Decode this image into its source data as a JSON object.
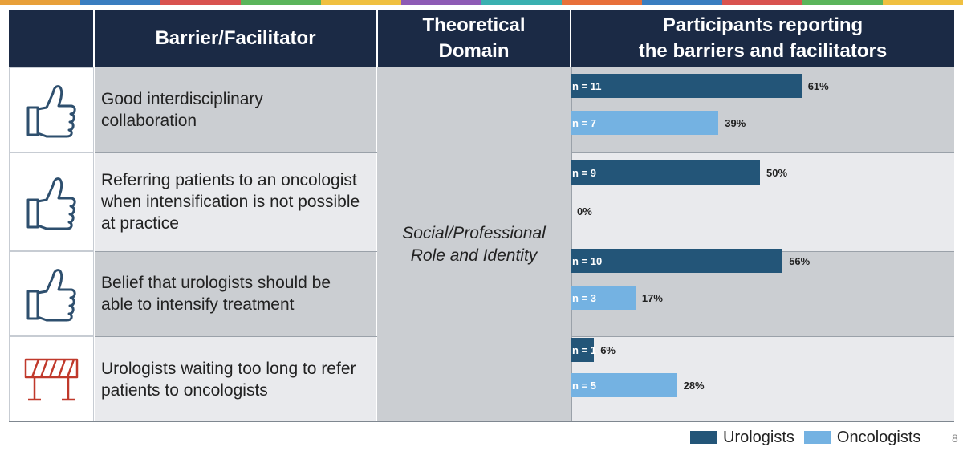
{
  "headers": {
    "barrier": "Barrier/Facilitator",
    "domain": "Theoretical Domain",
    "participants_line1": "Participants reporting",
    "participants_line2": "the barriers and facilitators"
  },
  "domain_label_line1": "Social/Professional",
  "domain_label_line2": "Role and Identity",
  "rows": [
    {
      "icon": "thumbs-up-icon",
      "text": "Good interdisciplinary collaboration"
    },
    {
      "icon": "thumbs-up-icon",
      "text": "Referring patients to an oncologist when intensification is not possible at practice"
    },
    {
      "icon": "thumbs-up-icon",
      "text": "Belief that urologists should be able to intensify treatment"
    },
    {
      "icon": "barrier-icon",
      "text": "Urologists waiting too long to refer patients to oncologists"
    }
  ],
  "chart_data": {
    "type": "bar",
    "orientation": "horizontal",
    "categories": [
      "Good interdisciplinary collaboration",
      "Referring patients to an oncologist when intensification is not possible at practice",
      "Belief that urologists should be able to intensify treatment",
      "Urologists waiting too long to refer patients to oncologists"
    ],
    "series": [
      {
        "name": "Urologists",
        "color": "#235578",
        "n_labels": [
          "n = 11",
          "n = 9",
          "n = 10",
          "n = 1"
        ],
        "values": [
          61,
          50,
          56,
          6
        ],
        "value_labels": [
          "61%",
          "50%",
          "56%",
          "6%"
        ]
      },
      {
        "name": "Oncologists",
        "color": "#74b2e2",
        "n_labels": [
          "n = 7",
          "",
          "n = 3",
          "n = 5"
        ],
        "values": [
          39,
          0,
          17,
          28
        ],
        "value_labels": [
          "39%",
          "0%",
          "17%",
          "28%"
        ]
      }
    ],
    "xlim": [
      0,
      100
    ],
    "legend_position": "bottom-right",
    "grid": false
  },
  "legend": {
    "urologists": "Urologists",
    "oncologists": "Oncologists"
  },
  "page_number": "8",
  "colors": {
    "header_bg": "#1b2a45",
    "row_dark": "#cbced2",
    "row_light": "#e9eaed",
    "thumb_icon": "#2e4f6e",
    "barrier_icon": "#c0392b"
  }
}
